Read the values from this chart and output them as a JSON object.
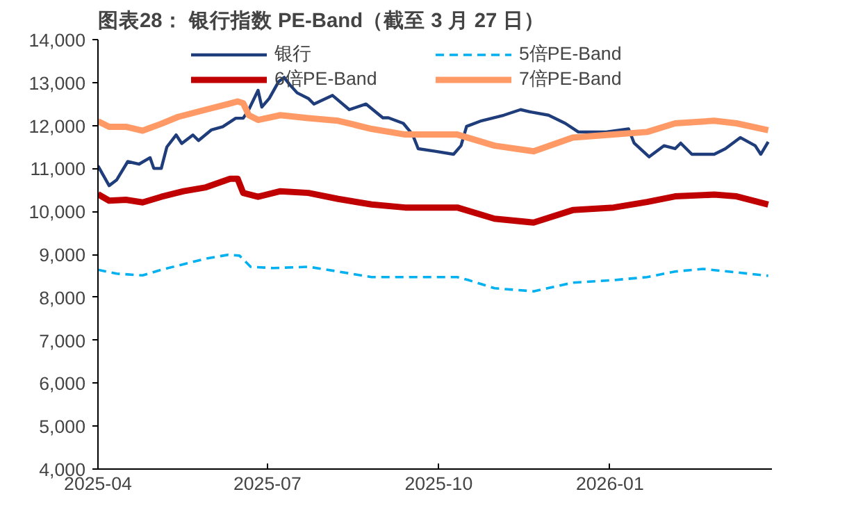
{
  "chart_data": {
    "type": "line",
    "title": "图表28：  银行指数 PE-Band（截至 3 月 27 日）",
    "xlim": [
      "2025-04",
      "2026-03-29"
    ],
    "xticks": [
      "2025-04",
      "2025-07",
      "2025-10",
      "2026-01"
    ],
    "ylim": [
      4000,
      14000
    ],
    "yticks": [
      {
        "value": 4000,
        "label": "4,000"
      },
      {
        "value": 5000,
        "label": "5,000"
      },
      {
        "value": 6000,
        "label": "6,000"
      },
      {
        "value": 7000,
        "label": "7,000"
      },
      {
        "value": 8000,
        "label": "8,000"
      },
      {
        "value": 9000,
        "label": "9,000"
      },
      {
        "value": 10000,
        "label": "10,000"
      },
      {
        "value": 11000,
        "label": "11,000"
      },
      {
        "value": 12000,
        "label": "12,000"
      },
      {
        "value": 13000,
        "label": "13,000"
      },
      {
        "value": 14000,
        "label": "14,000"
      }
    ],
    "grid": false,
    "legend": "top",
    "marker": "none",
    "series": [
      {
        "name": "银行",
        "color": "#1f3d7a",
        "line_style": "solid",
        "x": [
          "2025-04-01",
          "2025-04-07",
          "2025-04-11",
          "2025-04-17",
          "2025-04-23",
          "2025-04-29",
          "2025-05-01",
          "2025-05-05",
          "2025-05-08",
          "2025-05-13",
          "2025-05-16",
          "2025-05-22",
          "2025-05-25",
          "2025-06-01",
          "2025-06-07",
          "2025-06-14",
          "2025-06-18",
          "2025-06-21",
          "2025-06-26",
          "2025-06-28",
          "2025-07-02",
          "2025-07-07",
          "2025-07-10",
          "2025-07-13",
          "2025-07-17",
          "2025-07-23",
          "2025-07-26",
          "2025-08-05",
          "2025-08-14",
          "2025-08-23",
          "2025-09-01",
          "2025-09-04",
          "2025-09-12",
          "2025-09-17",
          "2025-09-20",
          "2025-09-29",
          "2025-10-09",
          "2025-10-13",
          "2025-10-16",
          "2025-10-24",
          "2025-11-05",
          "2025-11-14",
          "2025-11-20",
          "2025-11-29",
          "2025-12-08",
          "2025-12-15",
          "2025-12-30",
          "2026-01-11",
          "2026-01-14",
          "2026-01-22",
          "2026-01-30",
          "2026-02-05",
          "2026-02-08",
          "2026-02-14",
          "2026-02-26",
          "2026-03-04",
          "2026-03-12",
          "2026-03-20",
          "2026-03-23",
          "2026-03-27"
        ],
        "values": [
          11060,
          10600,
          10730,
          11160,
          11100,
          11250,
          11000,
          11000,
          11500,
          11780,
          11580,
          11780,
          11650,
          11900,
          11970,
          12170,
          12170,
          12370,
          12820,
          12430,
          12630,
          13020,
          13120,
          12950,
          12760,
          12630,
          12500,
          12700,
          12370,
          12500,
          12180,
          12180,
          12050,
          11790,
          11460,
          11400,
          11330,
          11530,
          11980,
          12110,
          12240,
          12370,
          12310,
          12240,
          12050,
          11850,
          11850,
          11920,
          11590,
          11270,
          11530,
          11460,
          11590,
          11330,
          11330,
          11460,
          11720,
          11530,
          11330,
          11620
        ]
      },
      {
        "name": "5倍PE-Band",
        "color": "#00b0f0",
        "line_style": "dashed",
        "x": [
          "2025-04-01",
          "2025-04-11",
          "2025-04-25",
          "2025-05-05",
          "2025-05-17",
          "2025-05-29",
          "2025-06-10",
          "2025-06-16",
          "2025-06-22",
          "2025-07-04",
          "2025-07-23",
          "2025-08-08",
          "2025-08-26",
          "2025-09-13",
          "2025-10-11",
          "2025-10-17",
          "2025-10-31",
          "2025-11-21",
          "2025-12-12",
          "2026-01-03",
          "2026-01-21",
          "2026-02-05",
          "2026-02-20",
          "2026-03-10",
          "2026-03-27"
        ],
        "values": [
          8640,
          8550,
          8510,
          8640,
          8770,
          8900,
          8990,
          8970,
          8710,
          8680,
          8710,
          8600,
          8470,
          8470,
          8470,
          8400,
          8210,
          8140,
          8340,
          8400,
          8470,
          8600,
          8660,
          8580,
          8500
        ]
      },
      {
        "name": "6倍PE-Band",
        "color": "#c00000",
        "line_style": "solid",
        "x": [
          "2025-04-01",
          "2025-04-07",
          "2025-04-16",
          "2025-04-25",
          "2025-05-05",
          "2025-05-17",
          "2025-05-29",
          "2025-06-11",
          "2025-06-15",
          "2025-06-18",
          "2025-06-26",
          "2025-07-08",
          "2025-07-23",
          "2025-08-08",
          "2025-08-26",
          "2025-09-13",
          "2025-10-11",
          "2025-10-31",
          "2025-11-21",
          "2025-12-12",
          "2026-01-03",
          "2026-01-21",
          "2026-02-05",
          "2026-02-26",
          "2026-03-10",
          "2026-03-27"
        ],
        "values": [
          10400,
          10250,
          10270,
          10210,
          10340,
          10470,
          10560,
          10760,
          10760,
          10430,
          10340,
          10470,
          10430,
          10290,
          10160,
          10090,
          10090,
          9830,
          9740,
          10030,
          10090,
          10220,
          10350,
          10390,
          10350,
          10160
        ]
      },
      {
        "name": "7倍PE-Band",
        "color": "#ff9a66",
        "line_style": "solid",
        "x": [
          "2025-04-01",
          "2025-04-07",
          "2025-04-16",
          "2025-04-25",
          "2025-05-05",
          "2025-05-14",
          "2025-05-29",
          "2025-06-10",
          "2025-06-15",
          "2025-06-18",
          "2025-06-21",
          "2025-06-26",
          "2025-07-08",
          "2025-07-23",
          "2025-08-08",
          "2025-08-26",
          "2025-09-13",
          "2025-10-11",
          "2025-10-31",
          "2025-11-21",
          "2025-12-12",
          "2026-01-03",
          "2026-01-21",
          "2026-02-05",
          "2026-02-26",
          "2026-03-10",
          "2026-03-27"
        ],
        "values": [
          12100,
          11970,
          11970,
          11880,
          12040,
          12200,
          12370,
          12500,
          12560,
          12520,
          12240,
          12130,
          12240,
          12170,
          12110,
          11920,
          11790,
          11790,
          11530,
          11400,
          11720,
          11790,
          11850,
          12050,
          12110,
          12050,
          11890
        ]
      }
    ]
  }
}
